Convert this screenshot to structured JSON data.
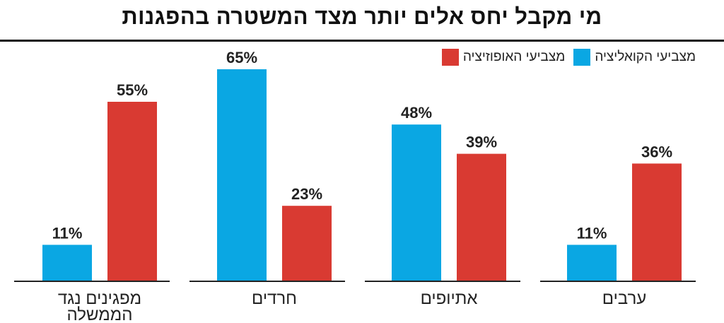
{
  "chart_data": {
    "type": "bar",
    "title": "מי מקבל יחס אלים יותר מצד המשטרה בהפגנות",
    "categories": [
      "ערבים",
      "אתיופים",
      "חרדים",
      "מפגינים נגד הממשלה"
    ],
    "category_lines": [
      [
        "ערבים"
      ],
      [
        "אתיופים"
      ],
      [
        "חרדים"
      ],
      [
        "מפגינים נגד",
        "הממשלה"
      ]
    ],
    "series": [
      {
        "name": "מצביעי האופוזיציה",
        "color": "#d93a32",
        "values": [
          36,
          39,
          23,
          55
        ]
      },
      {
        "name": "מצביעי הקואליציה",
        "color": "#0aa7e3",
        "values": [
          11,
          48,
          65,
          11
        ]
      }
    ],
    "value_suffix": "%",
    "ylim": [
      0,
      65
    ],
    "grid": false,
    "legend": "top-right",
    "xlabel": "",
    "ylabel": ""
  }
}
